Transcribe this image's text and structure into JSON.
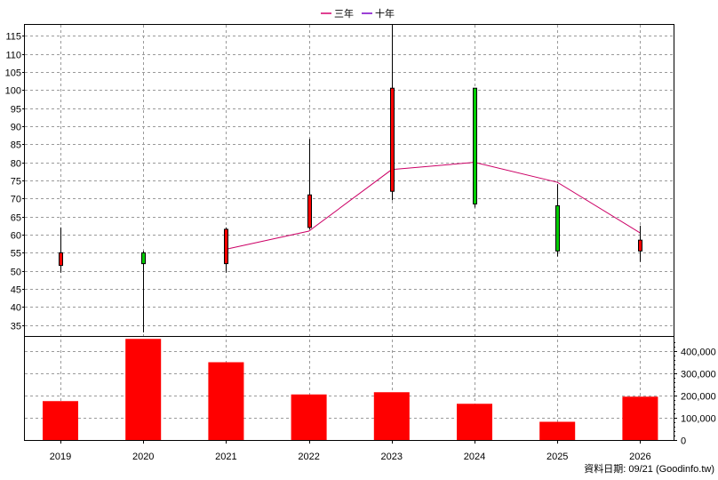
{
  "legend": [
    {
      "label": "三年",
      "color": "#d6006e"
    },
    {
      "label": "十年",
      "color": "#7a00c8"
    }
  ],
  "credit": "資料日期: 09/21  (Goodinfo.tw)",
  "colors": {
    "up": "#ff0000",
    "down": "#00cc00",
    "volume": "#ff0000",
    "line": "#cc0066"
  },
  "chart_data": {
    "type": "candlestick",
    "categories": [
      "2019",
      "2020",
      "2021",
      "2022",
      "2023",
      "2024",
      "2025",
      "2026"
    ],
    "price": {
      "ylim": [
        32,
        118
      ],
      "ticks": [
        35,
        40,
        45,
        50,
        55,
        60,
        65,
        70,
        75,
        80,
        85,
        90,
        95,
        100,
        105,
        110,
        115
      ],
      "candles": [
        {
          "x": "2019",
          "open": 51.5,
          "close": 55.0,
          "high": 62.0,
          "low": 49.5,
          "direction": "up"
        },
        {
          "x": "2020",
          "open": 55.0,
          "close": 52.0,
          "high": 55.5,
          "low": 33.0,
          "direction": "down"
        },
        {
          "x": "2021",
          "open": 52.0,
          "close": 61.5,
          "high": 62.0,
          "low": 49.5,
          "direction": "up"
        },
        {
          "x": "2022",
          "open": 62.0,
          "close": 71.0,
          "high": 86.5,
          "low": 61.5,
          "direction": "up"
        },
        {
          "x": "2023",
          "open": 72.0,
          "close": 100.5,
          "high": 118.0,
          "low": 69.5,
          "direction": "up"
        },
        {
          "x": "2024",
          "open": 100.5,
          "close": 68.5,
          "high": 100.5,
          "low": 67.5,
          "direction": "down"
        },
        {
          "x": "2025",
          "open": 68.0,
          "close": 55.5,
          "high": 74.0,
          "low": 54.0,
          "direction": "down"
        },
        {
          "x": "2026",
          "open": 55.5,
          "close": 58.5,
          "high": 62.5,
          "low": 52.5,
          "direction": "up"
        }
      ],
      "line": {
        "name": "三年",
        "x": [
          "2021",
          "2022",
          "2023",
          "2024",
          "2025",
          "2026"
        ],
        "values": [
          56.0,
          61.0,
          78.0,
          80.0,
          74.5,
          60.5
        ]
      }
    },
    "volume": {
      "ylim": [
        0,
        460000
      ],
      "ticks": [
        0,
        100000,
        200000,
        300000,
        400000
      ],
      "tick_labels": [
        "0",
        "100,000",
        "200,000",
        "300,000",
        "400,000"
      ],
      "values": [
        175000,
        455000,
        350000,
        205000,
        215000,
        163000,
        82000,
        195000
      ]
    }
  }
}
